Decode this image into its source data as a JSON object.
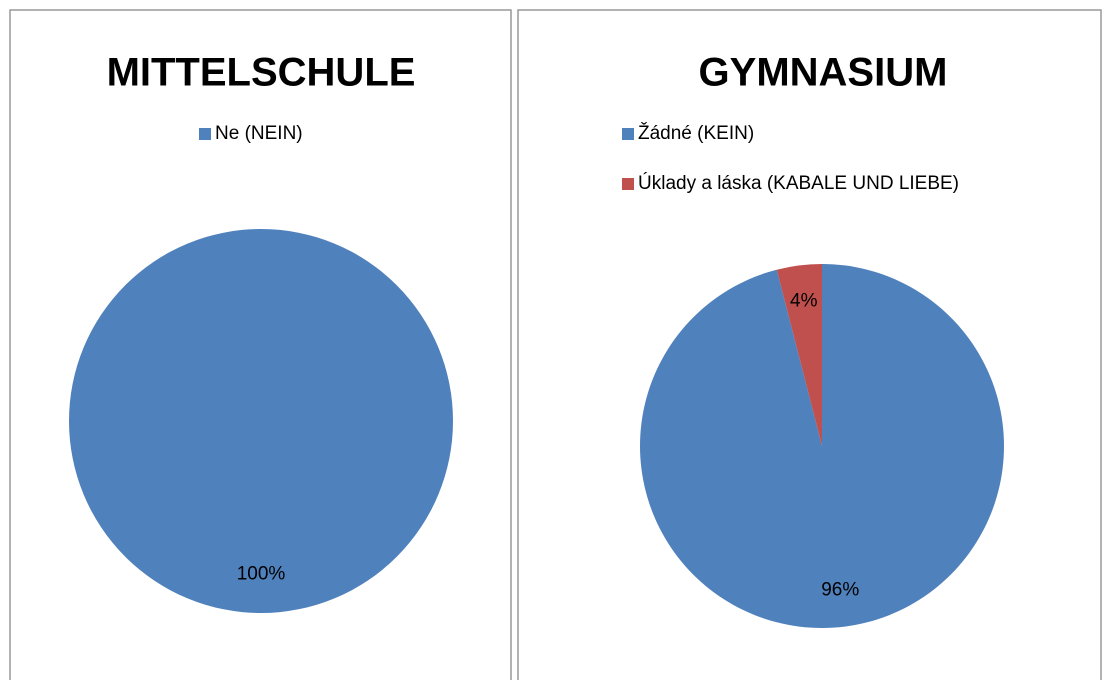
{
  "chart_data": [
    {
      "type": "pie",
      "title": "MITTELSCHULE",
      "categories": [
        "Ne (NEIN)"
      ],
      "values": [
        100
      ],
      "value_labels": [
        "100%"
      ],
      "colors": [
        "#4f81bd"
      ],
      "legend": "top"
    },
    {
      "type": "pie",
      "title": "GYMNASIUM",
      "categories": [
        "Žádné (KEIN)",
        "Úklady a láska (KABALE UND LIEBE)"
      ],
      "values": [
        96,
        4
      ],
      "value_labels": [
        "96%",
        "4%"
      ],
      "colors": [
        "#4f81bd",
        "#c0504d"
      ],
      "legend": "top"
    }
  ]
}
